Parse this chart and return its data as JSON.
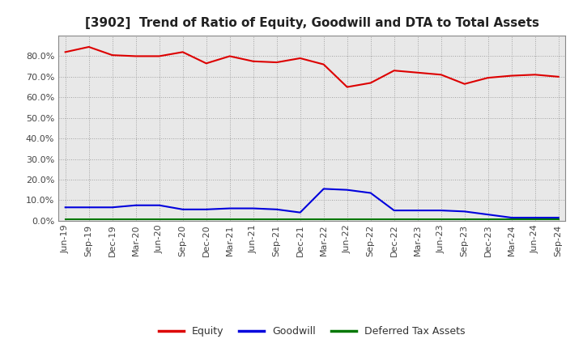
{
  "title": "[3902]  Trend of Ratio of Equity, Goodwill and DTA to Total Assets",
  "x_labels": [
    "Jun-19",
    "Sep-19",
    "Dec-19",
    "Mar-20",
    "Jun-20",
    "Sep-20",
    "Dec-20",
    "Mar-21",
    "Jun-21",
    "Sep-21",
    "Dec-21",
    "Mar-22",
    "Jun-22",
    "Sep-22",
    "Dec-22",
    "Mar-23",
    "Jun-23",
    "Sep-23",
    "Dec-23",
    "Mar-24",
    "Jun-24",
    "Sep-24"
  ],
  "equity": [
    82.0,
    84.5,
    80.5,
    80.0,
    80.0,
    82.0,
    76.5,
    80.0,
    77.5,
    77.0,
    79.0,
    76.0,
    65.0,
    67.0,
    73.0,
    72.0,
    71.0,
    66.5,
    69.5,
    70.5,
    71.0,
    70.0
  ],
  "goodwill": [
    6.5,
    6.5,
    6.5,
    7.5,
    7.5,
    5.5,
    5.5,
    6.0,
    6.0,
    5.5,
    4.0,
    15.5,
    15.0,
    13.5,
    5.0,
    5.0,
    5.0,
    4.5,
    3.0,
    1.5,
    1.5,
    1.5
  ],
  "dta": [
    0.8,
    0.8,
    0.8,
    0.8,
    0.8,
    0.8,
    0.8,
    0.8,
    0.8,
    0.8,
    0.8,
    0.8,
    0.8,
    0.8,
    0.8,
    0.8,
    0.8,
    0.8,
    0.8,
    0.8,
    0.8,
    0.8
  ],
  "equity_color": "#dd0000",
  "goodwill_color": "#0000dd",
  "dta_color": "#007700",
  "ylim": [
    0,
    90
  ],
  "yticks": [
    0,
    10,
    20,
    30,
    40,
    50,
    60,
    70,
    80
  ],
  "plot_bg_color": "#e8e8e8",
  "fig_bg_color": "#ffffff",
  "grid_color": "#999999",
  "legend_labels": [
    "Equity",
    "Goodwill",
    "Deferred Tax Assets"
  ],
  "title_fontsize": 11,
  "tick_fontsize": 8,
  "legend_fontsize": 9
}
